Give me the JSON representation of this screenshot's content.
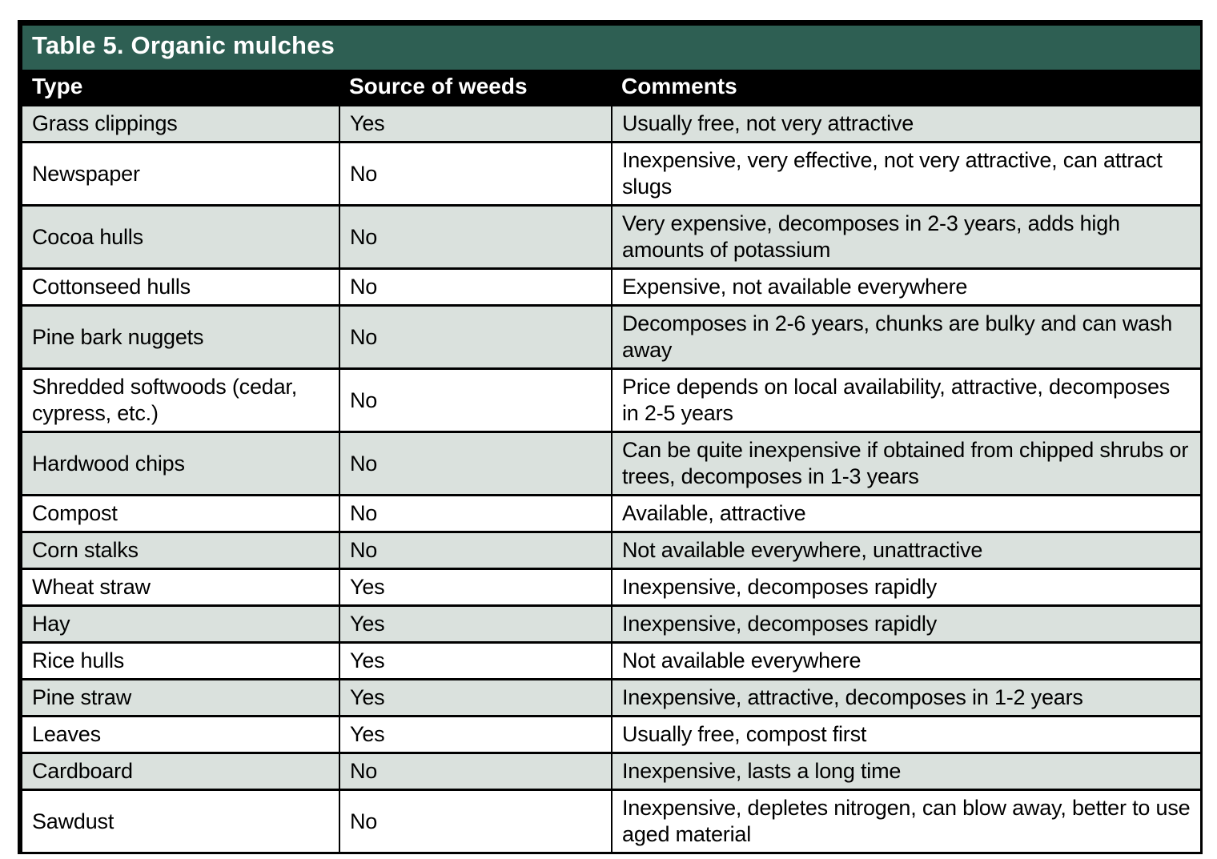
{
  "table": {
    "title": "Table 5. Organic mulches",
    "columns": [
      "Type",
      "Source of weeds",
      "Comments"
    ],
    "rows": [
      {
        "type": "Grass clippings",
        "source_of_weeds": "Yes",
        "comments": "Usually free, not very attractive"
      },
      {
        "type": "Newspaper",
        "source_of_weeds": "No",
        "comments": "Inexpensive, very effective, not very attractive, can attract slugs"
      },
      {
        "type": "Cocoa hulls",
        "source_of_weeds": "No",
        "comments": "Very expensive, decomposes in 2-3 years, adds high amounts of potassium"
      },
      {
        "type": "Cottonseed hulls",
        "source_of_weeds": "No",
        "comments": "Expensive, not available everywhere"
      },
      {
        "type": "Pine bark nuggets",
        "source_of_weeds": "No",
        "comments": "Decomposes in 2-6 years, chunks are bulky and can wash away"
      },
      {
        "type": "Shredded softwoods (cedar, cypress, etc.)",
        "source_of_weeds": "No",
        "comments": "Price depends on local availability, attractive, decom­poses in 2-5 years"
      },
      {
        "type": "Hardwood chips",
        "source_of_weeds": "No",
        "comments": "Can be quite inexpensive if obtained from chipped shrubs or trees, decomposes in 1-3 years"
      },
      {
        "type": "Compost",
        "source_of_weeds": "No",
        "comments": "Available, attractive"
      },
      {
        "type": "Corn stalks",
        "source_of_weeds": "No",
        "comments": "Not available everywhere, unattractive"
      },
      {
        "type": "Wheat straw",
        "source_of_weeds": "Yes",
        "comments": "Inexpensive, decomposes rapidly"
      },
      {
        "type": "Hay",
        "source_of_weeds": "Yes",
        "comments": "Inexpensive, decomposes rapidly"
      },
      {
        "type": "Rice hulls",
        "source_of_weeds": "Yes",
        "comments": "Not available everywhere"
      },
      {
        "type": "Pine straw",
        "source_of_weeds": "Yes",
        "comments": "Inexpensive, attractive, decomposes in 1-2 years"
      },
      {
        "type": "Leaves",
        "source_of_weeds": "Yes",
        "comments": "Usually free, compost first"
      },
      {
        "type": "Cardboard",
        "source_of_weeds": "No",
        "comments": "Inexpensive, lasts a long time"
      },
      {
        "type": "Sawdust",
        "source_of_weeds": "No",
        "comments": "Inexpensive, depletes nitrogen, can blow away, better to use aged material"
      }
    ]
  },
  "colors": {
    "title_bar_bg": "#2E5F53",
    "title_text": "#FFFFFF",
    "header_row_bg": "#000000",
    "header_text": "#FFFFFF",
    "shaded_row_bg": "#DAE1DD",
    "body_text": "#000000",
    "border": "#000000"
  }
}
